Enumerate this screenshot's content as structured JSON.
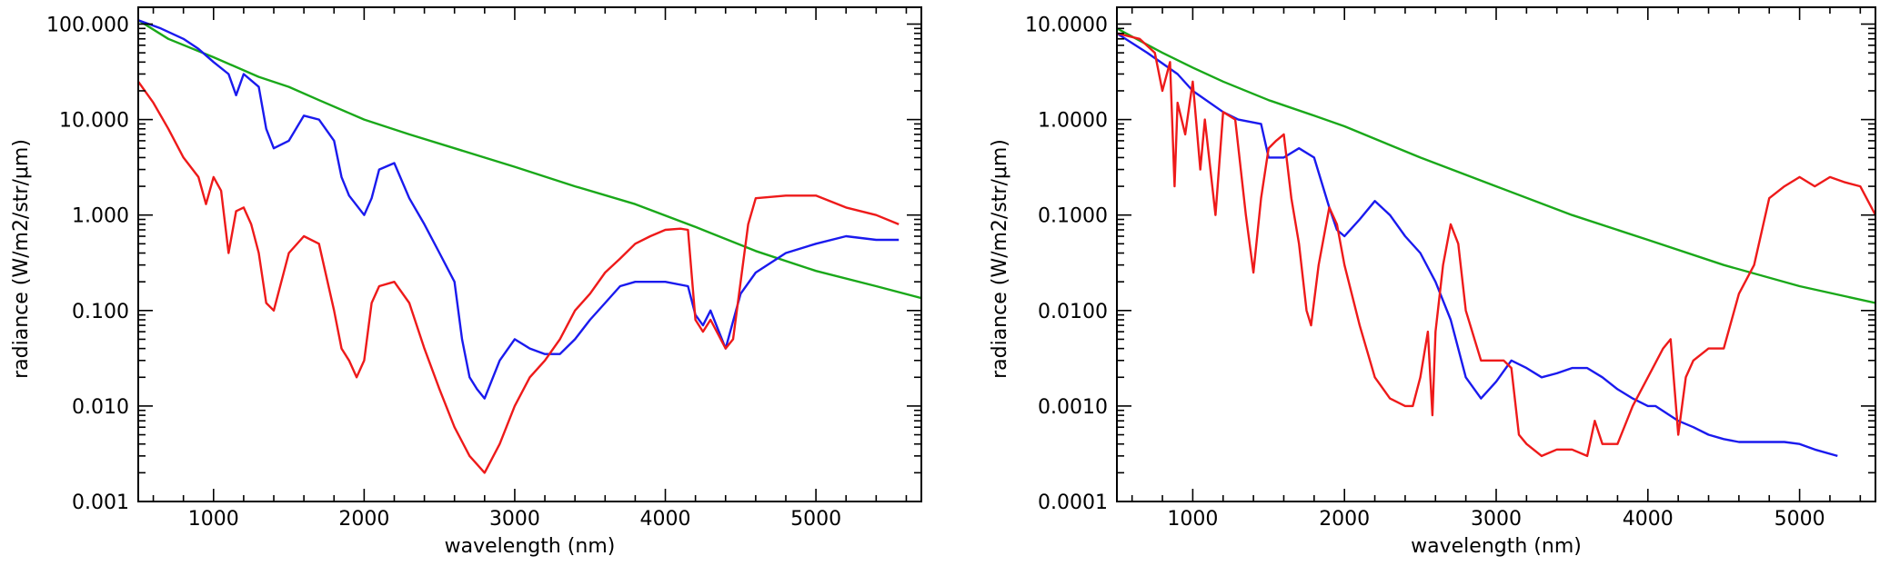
{
  "chart_data": [
    {
      "type": "line",
      "title": "",
      "xlabel": "wavelength (nm)",
      "ylabel": "radiance (W/m2/str/μm)",
      "xscale": "linear",
      "yscale": "log",
      "xlim": [
        500,
        5700
      ],
      "ylim": [
        0.001,
        150
      ],
      "xticks": [
        1000,
        2000,
        3000,
        4000,
        5000
      ],
      "xtick_labels": [
        "1000",
        "2000",
        "3000",
        "4000",
        "5000"
      ],
      "yticks": [
        0.001,
        0.01,
        0.1,
        1,
        10,
        100
      ],
      "ytick_labels": [
        "0.001",
        "0.010",
        "0.100",
        "1.000",
        "10.000",
        "100.000"
      ],
      "grid": false,
      "series": [
        {
          "name": "green",
          "color": "#1aa81a",
          "x": [
            500,
            700,
            1000,
            1300,
            1500,
            1700,
            2000,
            2300,
            2600,
            3000,
            3400,
            3800,
            4200,
            4600,
            5000,
            5400,
            5700
          ],
          "y": [
            110,
            70,
            45,
            28,
            22,
            16,
            10,
            7,
            5,
            3.2,
            2,
            1.3,
            0.75,
            0.42,
            0.26,
            0.18,
            0.135
          ]
        },
        {
          "name": "blue",
          "color": "#1a1aee",
          "x": [
            500,
            650,
            800,
            900,
            1000,
            1100,
            1150,
            1200,
            1300,
            1350,
            1400,
            1500,
            1600,
            1700,
            1800,
            1850,
            1900,
            2000,
            2050,
            2100,
            2200,
            2300,
            2400,
            2500,
            2600,
            2650,
            2700,
            2750,
            2800,
            2900,
            3000,
            3100,
            3200,
            3300,
            3400,
            3500,
            3600,
            3700,
            3800,
            3900,
            4000,
            4150,
            4200,
            4250,
            4300,
            4400,
            4500,
            4600,
            4800,
            5000,
            5200,
            5400,
            5550
          ],
          "y": [
            110,
            90,
            70,
            55,
            40,
            30,
            18,
            30,
            22,
            8,
            5,
            6,
            11,
            10,
            6,
            2.5,
            1.6,
            1,
            1.5,
            3,
            3.5,
            1.5,
            0.8,
            0.4,
            0.2,
            0.05,
            0.02,
            0.015,
            0.012,
            0.03,
            0.05,
            0.04,
            0.035,
            0.035,
            0.05,
            0.08,
            0.12,
            0.18,
            0.2,
            0.2,
            0.2,
            0.18,
            0.09,
            0.07,
            0.1,
            0.04,
            0.15,
            0.25,
            0.4,
            0.5,
            0.6,
            0.55,
            0.55
          ]
        },
        {
          "name": "red",
          "color": "#ee1a1a",
          "x": [
            500,
            600,
            700,
            800,
            900,
            950,
            1000,
            1050,
            1100,
            1150,
            1200,
            1250,
            1300,
            1350,
            1400,
            1500,
            1600,
            1700,
            1800,
            1850,
            1900,
            1950,
            2000,
            2050,
            2100,
            2200,
            2300,
            2400,
            2500,
            2600,
            2700,
            2800,
            2900,
            3000,
            3100,
            3200,
            3300,
            3400,
            3500,
            3600,
            3700,
            3800,
            3900,
            4000,
            4100,
            4150,
            4200,
            4250,
            4300,
            4400,
            4450,
            4500,
            4550,
            4600,
            4800,
            5000,
            5200,
            5400,
            5550
          ],
          "y": [
            25,
            15,
            8,
            4,
            2.5,
            1.3,
            2.5,
            1.8,
            0.4,
            1.1,
            1.2,
            0.8,
            0.4,
            0.12,
            0.1,
            0.4,
            0.6,
            0.5,
            0.1,
            0.04,
            0.03,
            0.02,
            0.03,
            0.12,
            0.18,
            0.2,
            0.12,
            0.04,
            0.015,
            0.006,
            0.003,
            0.002,
            0.004,
            0.01,
            0.02,
            0.03,
            0.05,
            0.1,
            0.15,
            0.25,
            0.35,
            0.5,
            0.6,
            0.7,
            0.72,
            0.7,
            0.08,
            0.06,
            0.08,
            0.04,
            0.05,
            0.2,
            0.8,
            1.5,
            1.6,
            1.6,
            1.2,
            1,
            0.8
          ]
        }
      ]
    },
    {
      "type": "line",
      "title": "",
      "xlabel": "wavelength (nm)",
      "ylabel": "radiance (W/m2/str/μm)",
      "xscale": "linear",
      "yscale": "log",
      "xlim": [
        500,
        5500
      ],
      "ylim": [
        0.0001,
        15
      ],
      "xticks": [
        1000,
        2000,
        3000,
        4000,
        5000
      ],
      "xtick_labels": [
        "1000",
        "2000",
        "3000",
        "4000",
        "5000"
      ],
      "yticks": [
        0.0001,
        0.001,
        0.01,
        0.1,
        1,
        10
      ],
      "ytick_labels": [
        "0.0001",
        "0.0010",
        "0.0100",
        "0.1000",
        "1.0000",
        "10.0000"
      ],
      "grid": false,
      "series": [
        {
          "name": "green",
          "color": "#1aa81a",
          "x": [
            500,
            800,
            1000,
            1200,
            1500,
            1800,
            2000,
            2500,
            3000,
            3500,
            4000,
            4500,
            5000,
            5500
          ],
          "y": [
            9,
            5,
            3.5,
            2.5,
            1.6,
            1.1,
            0.85,
            0.4,
            0.2,
            0.1,
            0.055,
            0.03,
            0.018,
            0.012
          ]
        },
        {
          "name": "blue",
          "color": "#1a1aee",
          "x": [
            500,
            700,
            900,
            1000,
            1200,
            1300,
            1450,
            1500,
            1600,
            1700,
            1800,
            1900,
            1950,
            2000,
            2100,
            2200,
            2300,
            2400,
            2500,
            2600,
            2700,
            2800,
            2900,
            3000,
            3100,
            3200,
            3300,
            3400,
            3500,
            3600,
            3700,
            3800,
            3900,
            4000,
            4050,
            4200,
            4300,
            4400,
            4500,
            4600,
            4700,
            4800,
            4900,
            5000,
            5100,
            5250
          ],
          "y": [
            8,
            5,
            3,
            2,
            1.2,
            1,
            0.9,
            0.4,
            0.4,
            0.5,
            0.4,
            0.12,
            0.07,
            0.06,
            0.09,
            0.14,
            0.1,
            0.06,
            0.04,
            0.02,
            0.008,
            0.002,
            0.0012,
            0.0018,
            0.003,
            0.0025,
            0.002,
            0.0022,
            0.0025,
            0.0025,
            0.002,
            0.0015,
            0.0012,
            0.001,
            0.001,
            0.0007,
            0.0006,
            0.0005,
            0.00045,
            0.00042,
            0.00042,
            0.00042,
            0.00042,
            0.0004,
            0.00035,
            0.0003
          ]
        },
        {
          "name": "red",
          "color": "#ee1a1a",
          "x": [
            500,
            650,
            750,
            800,
            850,
            880,
            900,
            950,
            1000,
            1050,
            1080,
            1150,
            1200,
            1280,
            1350,
            1400,
            1450,
            1500,
            1550,
            1600,
            1650,
            1700,
            1750,
            1780,
            1830,
            1900,
            1950,
            2000,
            2100,
            2200,
            2300,
            2400,
            2450,
            2500,
            2550,
            2580,
            2600,
            2650,
            2700,
            2750,
            2800,
            2900,
            3000,
            3050,
            3100,
            3150,
            3200,
            3300,
            3400,
            3500,
            3600,
            3650,
            3700,
            3800,
            3900,
            4000,
            4100,
            4150,
            4200,
            4250,
            4300,
            4400,
            4500,
            4600,
            4700,
            4800,
            4900,
            5000,
            5100,
            5200,
            5300,
            5400,
            5500
          ],
          "y": [
            8,
            7,
            5,
            2,
            4,
            0.2,
            1.5,
            0.7,
            2.5,
            0.3,
            1,
            0.1,
            1.2,
            1.0,
            0.1,
            0.025,
            0.15,
            0.5,
            0.6,
            0.7,
            0.15,
            0.05,
            0.01,
            0.007,
            0.03,
            0.12,
            0.08,
            0.03,
            0.007,
            0.002,
            0.0012,
            0.001,
            0.001,
            0.002,
            0.006,
            0.0008,
            0.006,
            0.03,
            0.08,
            0.05,
            0.01,
            0.003,
            0.003,
            0.003,
            0.0025,
            0.0005,
            0.0004,
            0.0003,
            0.00035,
            0.00035,
            0.0003,
            0.0007,
            0.0004,
            0.0004,
            0.001,
            0.002,
            0.004,
            0.005,
            0.0005,
            0.002,
            0.003,
            0.004,
            0.004,
            0.015,
            0.03,
            0.15,
            0.2,
            0.25,
            0.2,
            0.25,
            0.22,
            0.2,
            0.1
          ]
        }
      ]
    }
  ]
}
